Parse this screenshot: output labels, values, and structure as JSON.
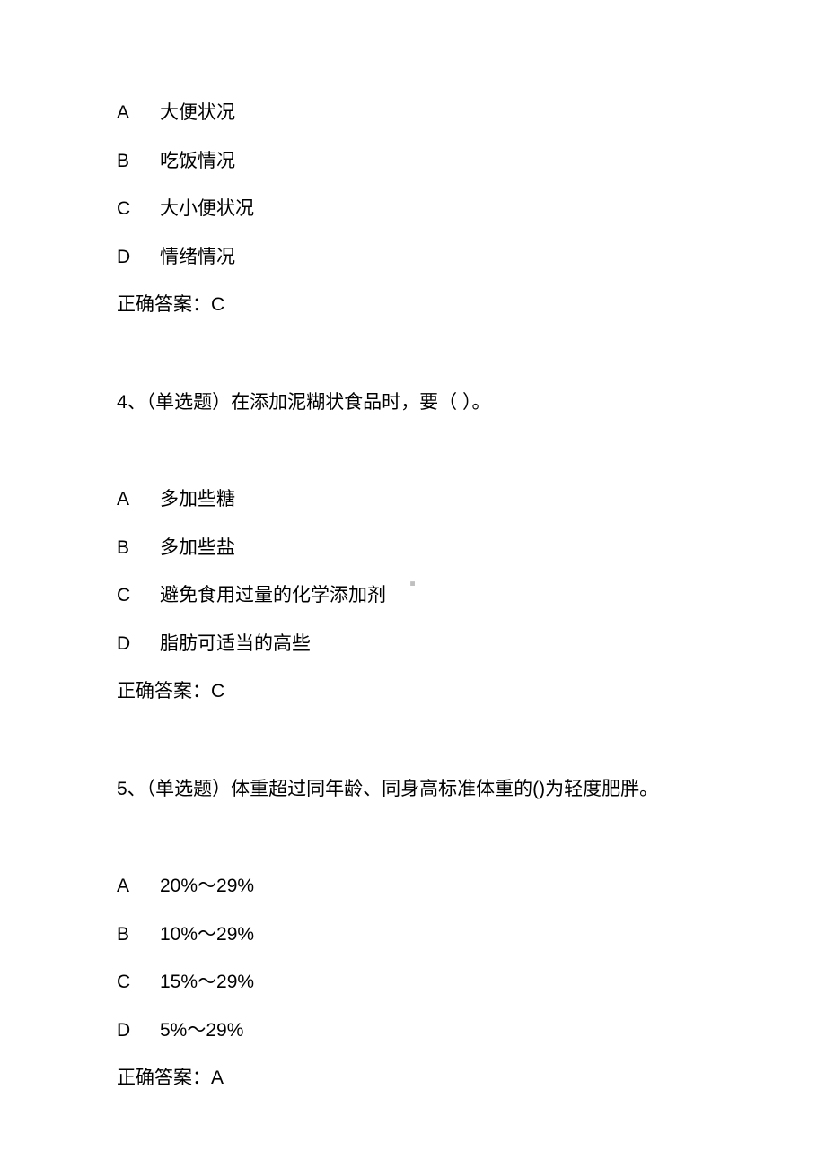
{
  "q3_tail": {
    "options": [
      {
        "letter": "A",
        "text": "大便状况"
      },
      {
        "letter": "B",
        "text": "吃饭情况"
      },
      {
        "letter": "C",
        "text": "大小便状况"
      },
      {
        "letter": "D",
        "text": "情绪情况"
      }
    ],
    "answer_label": "正确答案：C"
  },
  "q4": {
    "prompt": "4、（单选题）在添加泥糊状食品时，要（ ）。",
    "options": [
      {
        "letter": "A",
        "text": "多加些糖"
      },
      {
        "letter": "B",
        "text": "多加些盐"
      },
      {
        "letter": "C",
        "text": "避免食用过量的化学添加剂"
      },
      {
        "letter": "D",
        "text": "脂肪可适当的高些"
      }
    ],
    "answer_label": "正确答案：C"
  },
  "q5": {
    "prompt": "5、（单选题）体重超过同年龄、同身高标准体重的()为轻度肥胖。",
    "options": [
      {
        "letter": "A",
        "text": "20%～29%"
      },
      {
        "letter": "B",
        "text": "10%～29%"
      },
      {
        "letter": "C",
        "text": "15%～29%"
      },
      {
        "letter": "D",
        "text": "5%～29%"
      }
    ],
    "answer_label": "正确答案：A"
  },
  "center_mark": "■"
}
